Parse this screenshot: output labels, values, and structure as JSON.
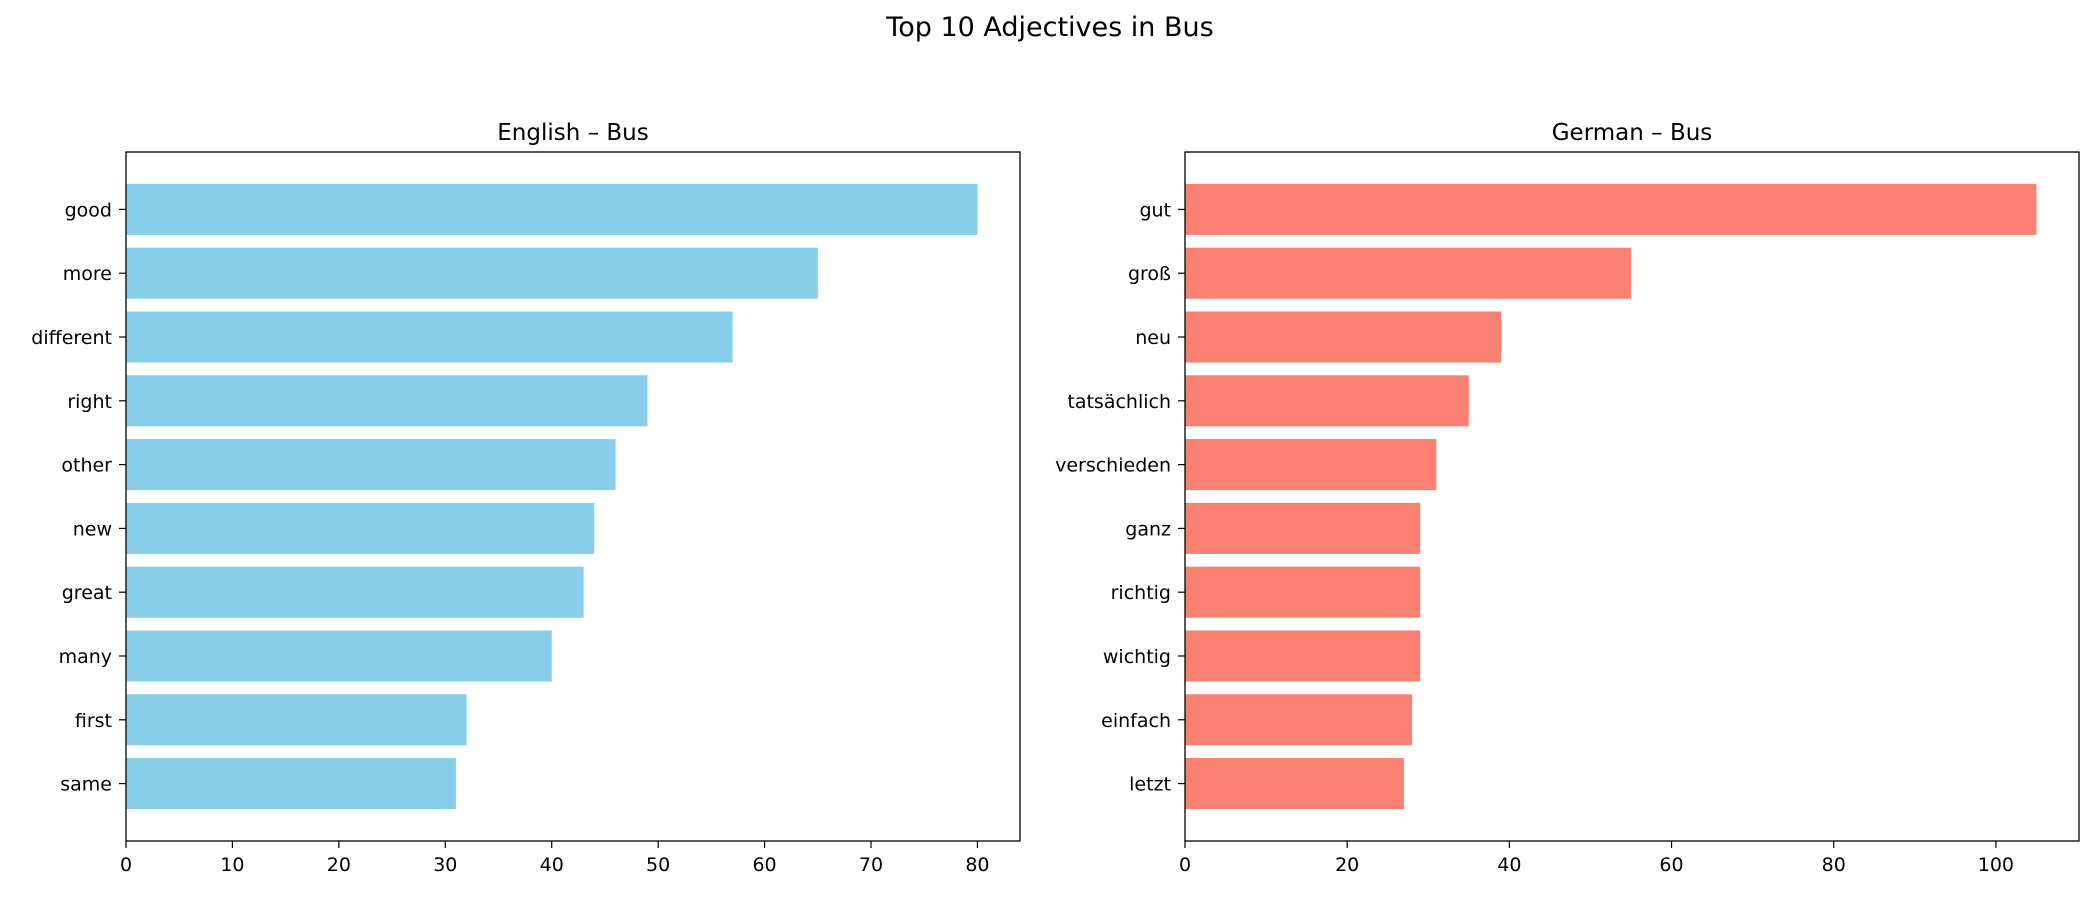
{
  "figure": {
    "title": "Top 10 Adjectives in Bus"
  },
  "chart_data": [
    {
      "type": "bar",
      "orientation": "horizontal",
      "title": "English – Bus",
      "categories": [
        "good",
        "more",
        "different",
        "right",
        "other",
        "new",
        "great",
        "many",
        "first",
        "same"
      ],
      "values": [
        80,
        65,
        57,
        49,
        46,
        44,
        43,
        40,
        32,
        31
      ],
      "xlabel": "",
      "ylabel": "",
      "xlim": [
        0,
        84
      ],
      "xticks": [
        0,
        10,
        20,
        30,
        40,
        50,
        60,
        70,
        80
      ],
      "color": "#87ceeb",
      "grid": false
    },
    {
      "type": "bar",
      "orientation": "horizontal",
      "title": "German – Bus",
      "categories": [
        "gut",
        "groß",
        "neu",
        "tatsächlich",
        "verschieden",
        "ganz",
        "richtig",
        "wichtig",
        "einfach",
        "letzt"
      ],
      "values": [
        105,
        55,
        39,
        35,
        31,
        29,
        29,
        29,
        28,
        27
      ],
      "xlabel": "",
      "ylabel": "",
      "xlim": [
        0,
        110.25
      ],
      "xticks": [
        0,
        20,
        40,
        60,
        80,
        100
      ],
      "color": "#fa8072",
      "grid": false
    }
  ]
}
